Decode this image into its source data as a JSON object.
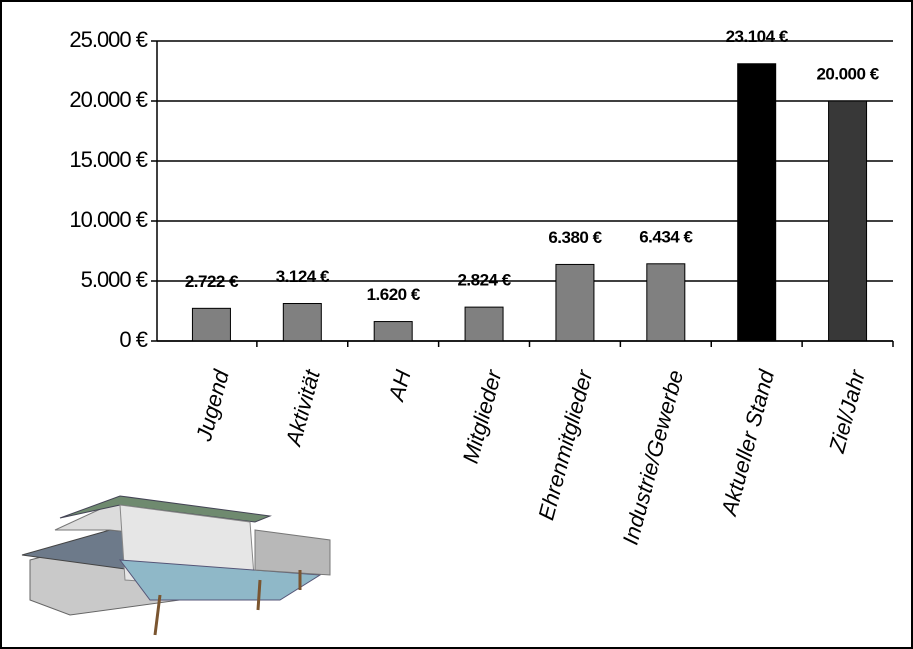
{
  "chart_data": {
    "type": "bar",
    "categories": [
      "Jugend",
      "Aktivität",
      "AH",
      "Mitglieder",
      "Ehrenmitglieder",
      "Industrie/Gewerbe",
      "Aktueller Stand",
      "Ziel/Jahr"
    ],
    "values": [
      2722,
      3124,
      1620,
      2824,
      6380,
      6434,
      23104,
      20000
    ],
    "value_labels": [
      "2.722 €",
      "3.124 €",
      "1.620 €",
      "2.824 €",
      "6.380 €",
      "6.434 €",
      "23.104 €",
      "20.000 €"
    ],
    "colors": [
      "#808080",
      "#808080",
      "#808080",
      "#808080",
      "#808080",
      "#808080",
      "#000000",
      "#383838"
    ],
    "ylim": [
      0,
      25000
    ],
    "yticks": [
      {
        "value": 0,
        "label": "0 €"
      },
      {
        "value": 5000,
        "label": "5.000 €"
      },
      {
        "value": 10000,
        "label": "10.000 €"
      },
      {
        "value": 15000,
        "label": "15.000 €"
      },
      {
        "value": 20000,
        "label": "20.000 €"
      },
      {
        "value": 25000,
        "label": "25.000 €"
      }
    ],
    "grid": true
  }
}
